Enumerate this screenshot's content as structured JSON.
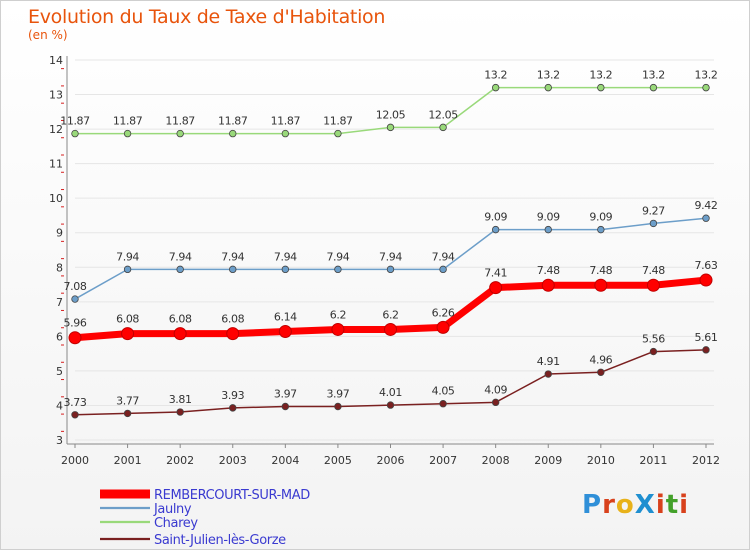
{
  "title": "Evolution du Taux de Taxe d'Habitation",
  "subtitle": "(en %)",
  "logo": "ProXiti",
  "chart_data": {
    "type": "line",
    "title": "Evolution du Taux de Taxe d'Habitation",
    "ylabel": "(en %)",
    "xlabel": "",
    "ylim": [
      3,
      14
    ],
    "yticks": [
      3,
      4,
      5,
      6,
      7,
      8,
      9,
      10,
      11,
      12,
      13,
      14
    ],
    "categories": [
      "2000",
      "2001",
      "2002",
      "2003",
      "2004",
      "2005",
      "2006",
      "2007",
      "2008",
      "2009",
      "2010",
      "2011",
      "2012"
    ],
    "legend_position": "bottom-left",
    "series": [
      {
        "name": "REMBERCOURT-SUR-MAD",
        "color": "#ff0000",
        "values": [
          5.96,
          6.08,
          6.08,
          6.08,
          6.14,
          6.2,
          6.2,
          6.26,
          7.41,
          7.48,
          7.48,
          7.48,
          7.63
        ],
        "labels": [
          "5.96",
          "6.08",
          "6.08",
          "6.08",
          "6.14",
          "6.2",
          "6.2",
          "6.26",
          "7.41",
          "7.48",
          "7.48",
          "7.48",
          "7.63"
        ]
      },
      {
        "name": "Jaulny",
        "color": "#6c9ec9",
        "values": [
          7.08,
          7.94,
          7.94,
          7.94,
          7.94,
          7.94,
          7.94,
          7.94,
          9.09,
          9.09,
          9.09,
          9.27,
          9.42
        ],
        "labels": [
          "7.08",
          "7.94",
          "7.94",
          "7.94",
          "7.94",
          "7.94",
          "7.94",
          "7.94",
          "9.09",
          "9.09",
          "9.09",
          "9.27",
          "9.42"
        ]
      },
      {
        "name": "Charey",
        "color": "#99d97a",
        "values": [
          11.87,
          11.87,
          11.87,
          11.87,
          11.87,
          11.87,
          12.05,
          12.05,
          13.2,
          13.2,
          13.2,
          13.2,
          13.2
        ],
        "labels": [
          "11.87",
          "11.87",
          "11.87",
          "11.87",
          "11.87",
          "11.87",
          "12.05",
          "12.05",
          "13.2",
          "13.2",
          "13.2",
          "13.2",
          "13.2"
        ]
      },
      {
        "name": "Saint-Julien-lès-Gorze",
        "color": "#7a2020",
        "values": [
          3.73,
          3.77,
          3.81,
          3.93,
          3.97,
          3.97,
          4.01,
          4.05,
          4.09,
          4.91,
          4.96,
          5.56,
          5.61
        ],
        "labels": [
          "3.73",
          "3.77",
          "3.81",
          "3.93",
          "3.97",
          "3.97",
          "4.01",
          "4.05",
          "4.09",
          "4.91",
          "4.96",
          "5.56",
          "5.61"
        ]
      }
    ]
  }
}
